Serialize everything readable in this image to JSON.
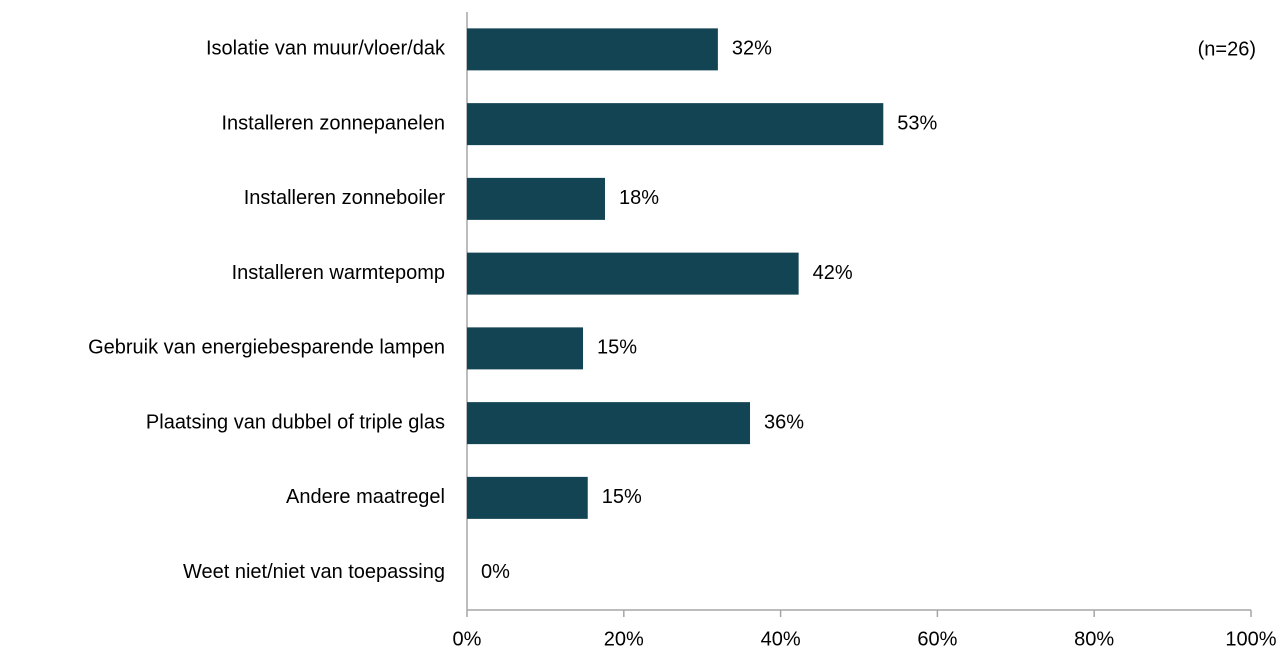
{
  "chart_data": {
    "type": "bar",
    "orientation": "horizontal",
    "categories": [
      "Isolatie van muur/vloer/dak",
      "Installeren zonnepanelen",
      "Installeren zonneboiler",
      "Installeren warmtepomp",
      "Gebruik van energiebesparende lampen",
      "Plaatsing van dubbel of triple glas",
      "Andere maatregel",
      "Weet niet/niet van toepassing"
    ],
    "values": [
      32,
      53.1,
      17.6,
      42.3,
      14.8,
      36.1,
      15.4,
      0
    ],
    "value_labels": [
      "32%",
      "53%",
      "18%",
      "42%",
      "15%",
      "36%",
      "15%",
      "0%"
    ],
    "color": "#134454",
    "xlim": [
      0,
      100
    ],
    "xticks": [
      {
        "value": 0,
        "label": "0%"
      },
      {
        "value": 20,
        "label": "20%"
      },
      {
        "value": 40,
        "label": "40%"
      },
      {
        "value": 60,
        "label": "60%"
      },
      {
        "value": 80,
        "label": "80%"
      },
      {
        "value": 100,
        "label": "100%"
      }
    ],
    "annotation": "(n=26)"
  }
}
